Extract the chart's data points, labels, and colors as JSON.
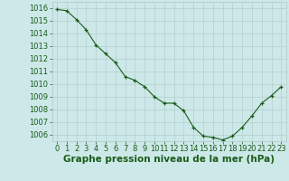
{
  "x": [
    0,
    1,
    2,
    3,
    4,
    5,
    6,
    7,
    8,
    9,
    10,
    11,
    12,
    13,
    14,
    15,
    16,
    17,
    18,
    19,
    20,
    21,
    22,
    23
  ],
  "y": [
    1015.9,
    1015.8,
    1015.1,
    1014.3,
    1013.1,
    1012.4,
    1011.7,
    1010.6,
    1010.3,
    1009.8,
    1009.0,
    1008.5,
    1008.5,
    1007.9,
    1006.6,
    1005.9,
    1005.8,
    1005.6,
    1005.9,
    1006.6,
    1007.5,
    1008.5,
    1009.1,
    1009.8
  ],
  "ylim": [
    1005.5,
    1016.5
  ],
  "xlim": [
    -0.5,
    23.5
  ],
  "yticks": [
    1006,
    1007,
    1008,
    1009,
    1010,
    1011,
    1012,
    1013,
    1014,
    1015,
    1016
  ],
  "xticks": [
    0,
    1,
    2,
    3,
    4,
    5,
    6,
    7,
    8,
    9,
    10,
    11,
    12,
    13,
    14,
    15,
    16,
    17,
    18,
    19,
    20,
    21,
    22,
    23
  ],
  "line_color": "#1a5c1a",
  "marker_color": "#1a5c1a",
  "bg_color": "#cce8e8",
  "grid_color": "#b0c8c8",
  "xlabel": "Graphe pression niveau de la mer (hPa)",
  "xlabel_color": "#1a5c1a",
  "xlabel_fontsize": 7.5,
  "tick_fontsize": 6,
  "tick_color": "#1a5c1a",
  "figure_bg": "#cce8e8"
}
